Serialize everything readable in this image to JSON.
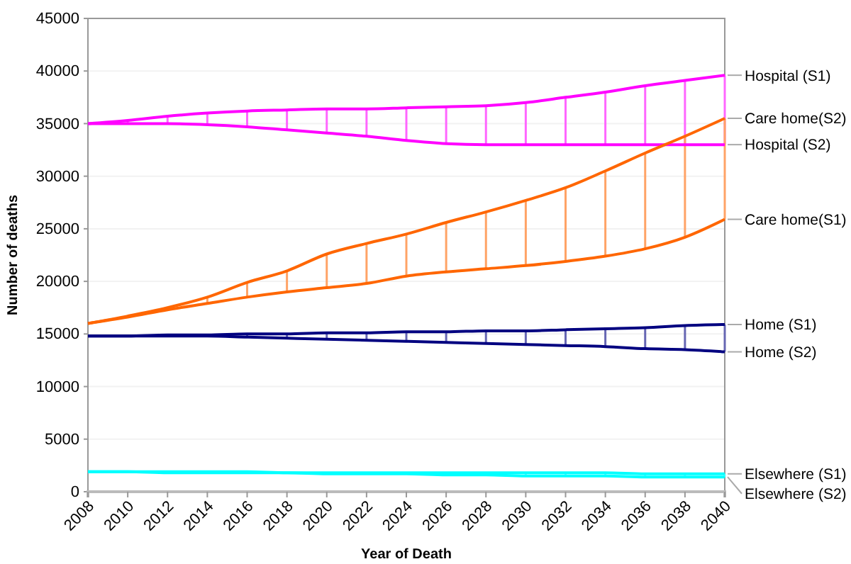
{
  "chart_data": {
    "type": "line",
    "xlabel": "Year of Death",
    "ylabel": "Number of deaths",
    "x": [
      2008,
      2010,
      2012,
      2014,
      2016,
      2018,
      2020,
      2022,
      2024,
      2026,
      2028,
      2030,
      2032,
      2034,
      2036,
      2038,
      2040
    ],
    "xlim": [
      2008,
      2040
    ],
    "xticks": [
      2008,
      2010,
      2012,
      2014,
      2016,
      2018,
      2020,
      2022,
      2024,
      2026,
      2028,
      2030,
      2032,
      2034,
      2036,
      2038,
      2040
    ],
    "ylim": [
      0,
      45000
    ],
    "yticks": [
      0,
      5000,
      10000,
      15000,
      20000,
      25000,
      30000,
      35000,
      40000,
      45000
    ],
    "grid": "y",
    "legend": false,
    "marker": "none",
    "line_style": "solid",
    "series": [
      {
        "name": "Hospital (S1)",
        "color": "#ff00ff",
        "values": [
          35000,
          35300,
          35700,
          36000,
          36200,
          36300,
          36400,
          36400,
          36500,
          36600,
          36700,
          37000,
          37500,
          38000,
          38600,
          39100,
          39600
        ]
      },
      {
        "name": "Hospital (S2)",
        "color": "#ff00ff",
        "values": [
          35000,
          35000,
          35000,
          34900,
          34700,
          34400,
          34100,
          33800,
          33400,
          33100,
          33000,
          33000,
          33000,
          33000,
          33000,
          33000,
          33000
        ]
      },
      {
        "name": "Care home(S2)",
        "color": "#ff6600",
        "values": [
          16000,
          16700,
          17500,
          18500,
          19900,
          21000,
          22600,
          23600,
          24500,
          25600,
          26600,
          27700,
          28900,
          30500,
          32200,
          33800,
          35500
        ]
      },
      {
        "name": "Care home(S1)",
        "color": "#ff6600",
        "values": [
          16000,
          16600,
          17300,
          17900,
          18500,
          19000,
          19400,
          19800,
          20500,
          20900,
          21200,
          21500,
          21900,
          22400,
          23100,
          24200,
          25900
        ]
      },
      {
        "name": "Home (S1)",
        "color": "#000080",
        "values": [
          14800,
          14800,
          14900,
          14900,
          15000,
          15000,
          15100,
          15100,
          15200,
          15200,
          15300,
          15300,
          15400,
          15500,
          15600,
          15800,
          15900
        ]
      },
      {
        "name": "Home (S2)",
        "color": "#000080",
        "values": [
          14800,
          14800,
          14800,
          14800,
          14700,
          14600,
          14500,
          14400,
          14300,
          14200,
          14100,
          14000,
          13900,
          13800,
          13600,
          13500,
          13300
        ]
      },
      {
        "name": "Elsewhere (S1)",
        "color": "#00ffff",
        "values": [
          1900,
          1900,
          1900,
          1900,
          1900,
          1800,
          1800,
          1800,
          1800,
          1800,
          1800,
          1800,
          1800,
          1800,
          1700,
          1700,
          1700
        ]
      },
      {
        "name": "Elsewhere (S2)",
        "color": "#00ffff",
        "values": [
          1900,
          1900,
          1800,
          1800,
          1800,
          1800,
          1700,
          1700,
          1700,
          1600,
          1600,
          1500,
          1500,
          1500,
          1400,
          1400,
          1400
        ]
      }
    ]
  }
}
